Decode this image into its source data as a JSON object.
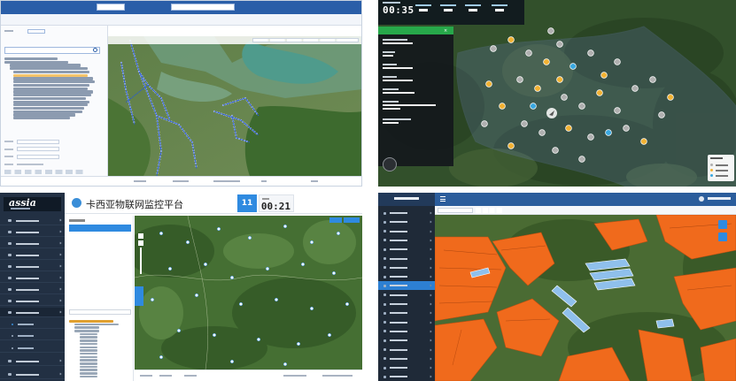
{
  "panel_topleft": {},
  "panel_topright": {
    "clock": {
      "time": "00:35"
    }
  },
  "panel_bottomleft": {
    "logo": "assia",
    "title": "卡西亚物联网监控平台",
    "date": {
      "day": "11"
    },
    "time": "00:21",
    "calendar": {
      "rows": [
        [
          "",
          "",
          "",
          "",
          "",
          "",
          ""
        ],
        [
          "",
          "",
          "",
          "",
          "",
          "",
          ""
        ],
        [
          "",
          "",
          "",
          "",
          "",
          "",
          ""
        ],
        [
          "",
          "",
          "",
          "",
          "",
          "",
          ""
        ],
        [
          "",
          "",
          "",
          "",
          "",
          "",
          ""
        ],
        [
          "",
          "",
          "",
          "",
          "",
          "",
          ""
        ]
      ]
    }
  },
  "panel_bottomright": {},
  "colors": {
    "topbar_blue": "#2a5ea8",
    "route_blue": "#2457e0",
    "status_green": "#27a84a",
    "platform_blue": "#2f8ae0",
    "parcel_orange": "#f06a1c",
    "greenhouse_blue": "#7fb4e8",
    "sidebar_dark": "#223043"
  },
  "icons": [
    "search-icon",
    "calendar-icon",
    "location-pin-icon",
    "user-icon",
    "chevron-down-icon",
    "layers-icon",
    "zoom-icon",
    "home-icon",
    "gear-icon"
  ]
}
